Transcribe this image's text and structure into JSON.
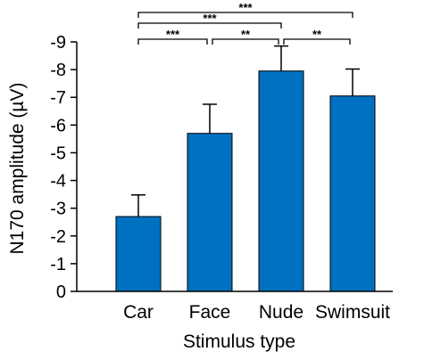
{
  "chart_data": {
    "type": "bar",
    "categories": [
      "Car",
      "Face",
      "Nude",
      "Swimsuit"
    ],
    "values": [
      -2.7,
      -5.7,
      -7.95,
      -7.05
    ],
    "errors": [
      0.78,
      1.05,
      0.9,
      0.97
    ],
    "xlabel": "Stimulus type",
    "ylabel": "N170 amplitude (µV)",
    "ylim": [
      0,
      -9
    ],
    "yticks": [
      {
        "value": 0,
        "label": "0"
      },
      {
        "value": -1,
        "label": "-1"
      },
      {
        "value": -2,
        "label": "-2"
      },
      {
        "value": -3,
        "label": "-3"
      },
      {
        "value": -4,
        "label": "-4"
      },
      {
        "value": -5,
        "label": "-5"
      },
      {
        "value": -6,
        "label": "-6"
      },
      {
        "value": -7,
        "label": "-7"
      },
      {
        "value": -8,
        "label": "-8"
      },
      {
        "value": -9,
        "label": "-9"
      }
    ],
    "bar_color": "#0070c0",
    "grid": false,
    "significance": [
      {
        "from": "Car",
        "to": "Swimsuit",
        "label": "***"
      },
      {
        "from": "Car",
        "to": "Nude",
        "label": "***"
      },
      {
        "from": "Car",
        "to": "Face",
        "label": "***"
      },
      {
        "from": "Face",
        "to": "Nude",
        "label": "**"
      },
      {
        "from": "Nude",
        "to": "Swimsuit",
        "label": "**"
      }
    ]
  }
}
